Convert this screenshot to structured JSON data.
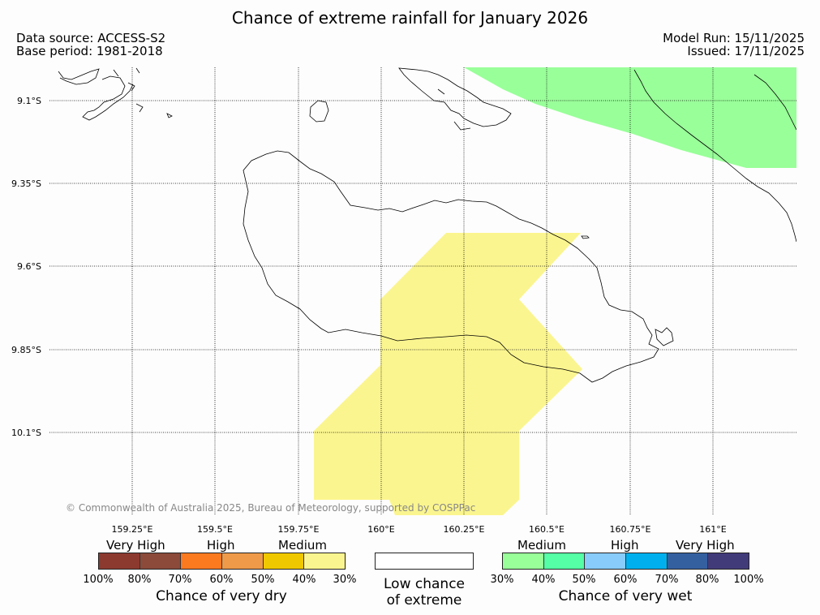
{
  "title": "Chance of extreme rainfall for January 2026",
  "meta": {
    "data_source": "Data source: ACCESS-S2",
    "base_period": "Base period: 1981-2018",
    "model_run": "Model Run: 15/11/2025",
    "issued": "Issued: 17/11/2025"
  },
  "map": {
    "lat_labels": [
      "9.1°S",
      "9.35°S",
      "9.6°S",
      "9.85°S",
      "10.1°S"
    ],
    "lon_labels": [
      "159.25°E",
      "159.5°E",
      "159.75°E",
      "160°E",
      "160.25°E",
      "160.5°E",
      "160.75°E",
      "161°E"
    ],
    "copyright": "© Commonwealth of Australia 2025, Bureau of Meteorology, supported by COSPPac",
    "regions": [
      {
        "name": "very-wet-medium",
        "category": "Chance of very wet 30-40%",
        "color": "#99ff99"
      },
      {
        "name": "very-dry-medium",
        "category": "Chance of very dry 30-40%",
        "color": "#fbf58f"
      }
    ]
  },
  "legend": {
    "dry": {
      "captions": [
        "Very High",
        "High",
        "Medium"
      ],
      "percents": [
        "100%",
        "80%",
        "70%",
        "60%",
        "50%",
        "40%",
        "30%"
      ],
      "colors": [
        "#8c3a30",
        "#8b4a3a",
        "#fb7a20",
        "#ee9a48",
        "#f0c800",
        "#fbf58f"
      ],
      "title": "Chance of very dry"
    },
    "low": {
      "line1": "Low chance",
      "line2": "of extreme"
    },
    "wet": {
      "captions": [
        "Medium",
        "High",
        "Very High"
      ],
      "percents": [
        "30%",
        "40%",
        "50%",
        "60%",
        "70%",
        "80%",
        "100%"
      ],
      "colors": [
        "#99ff99",
        "#55ffa5",
        "#88ccfc",
        "#00b0ee",
        "#3460a0",
        "#423b7a"
      ],
      "title": "Chance of very wet"
    }
  }
}
